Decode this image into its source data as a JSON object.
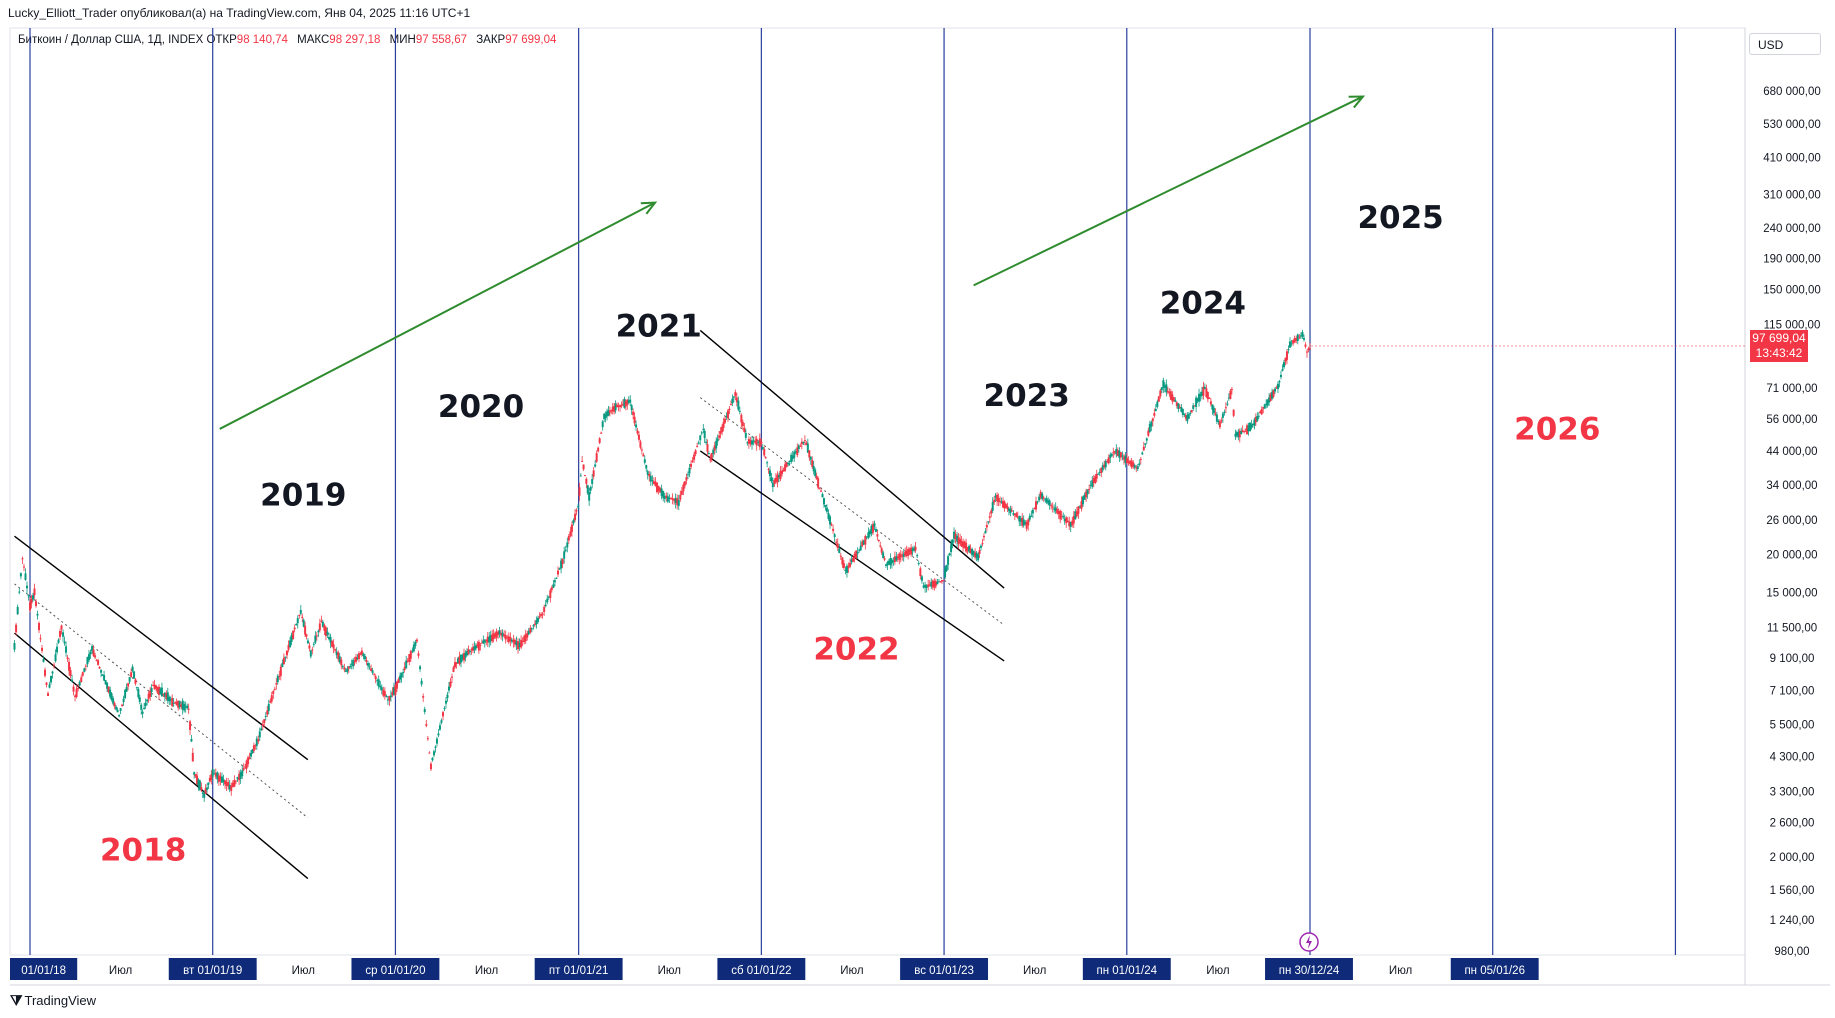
{
  "header": {
    "text": "Lucky_Elliott_Trader опубликовал(а) на TradingView.com, Янв 04, 2025 11:16 UTC+1"
  },
  "legend": {
    "symbol": "Биткоин / Доллар США, 1Д, INDEX",
    "open_label": "ОТКР",
    "open": "98 140,74",
    "high_label": "МАКС",
    "high": "98 297,18",
    "low_label": "МИН",
    "low": "97 558,67",
    "close_label": "ЗАКР",
    "close": "97 699,04"
  },
  "currency": "USD",
  "last_price": {
    "value": "97 699,04",
    "countdown": "13:43:42"
  },
  "footer": {
    "brand": "TradingView",
    "logo_icon": "tradingview-logo-icon"
  },
  "colors": {
    "up": "#089981",
    "down": "#f23645",
    "year_line": "#2a3f9d",
    "arrow": "#2e8b2e",
    "bear_year": "#f23645",
    "bull_year": "#131722"
  },
  "chart_data": {
    "type": "line",
    "title": "",
    "y_scale": "log",
    "ylim": [
      950,
      900000
    ],
    "y_ticks": [
      980,
      1240,
      1560,
      2000,
      2600,
      3300,
      4300,
      5500,
      7100,
      9100,
      11500,
      15000,
      20000,
      26000,
      34000,
      44000,
      56000,
      71000,
      115000,
      150000,
      190000,
      240000,
      310000,
      410000,
      530000,
      680000
    ],
    "y_tick_labels": [
      "980,00",
      "1 240,00",
      "1 560,00",
      "2 000,00",
      "2 600,00",
      "3 300,00",
      "4 300,00",
      "5 500,00",
      "7 100,00",
      "9 100,00",
      "11 500,00",
      "15 000,00",
      "20 000,00",
      "26 000,00",
      "34 000,00",
      "44 000,00",
      "56 000,00",
      "71 000,00",
      "115 000,00",
      "150 000,00",
      "190 000,00",
      "240 000,00",
      "310 000,00",
      "410 000,00",
      "530 000,00",
      "680 000,00"
    ],
    "xlim": [
      "2017-12-01",
      "2026-12-01"
    ],
    "x_ticks": [
      {
        "date": "2018-01-01",
        "label": "01/01/18",
        "boxed": true
      },
      {
        "date": "2018-07-01",
        "label": "Июл",
        "boxed": false
      },
      {
        "date": "2019-01-01",
        "label": "вт 01/01/19",
        "boxed": true
      },
      {
        "date": "2019-07-01",
        "label": "Июл",
        "boxed": false
      },
      {
        "date": "2020-01-01",
        "label": "ср 01/01/20",
        "boxed": true
      },
      {
        "date": "2020-07-01",
        "label": "Июл",
        "boxed": false
      },
      {
        "date": "2021-01-01",
        "label": "пт 01/01/21",
        "boxed": true
      },
      {
        "date": "2021-07-01",
        "label": "Июл",
        "boxed": false
      },
      {
        "date": "2022-01-01",
        "label": "сб 01/01/22",
        "boxed": true
      },
      {
        "date": "2022-07-01",
        "label": "Июл",
        "boxed": false
      },
      {
        "date": "2023-01-01",
        "label": "вс 01/01/23",
        "boxed": true
      },
      {
        "date": "2023-07-01",
        "label": "Июл",
        "boxed": false
      },
      {
        "date": "2024-01-01",
        "label": "пн 01/01/24",
        "boxed": true
      },
      {
        "date": "2024-07-01",
        "label": "Июл",
        "boxed": false
      },
      {
        "date": "2024-12-30",
        "label": "пн 30/12/24",
        "boxed": true
      },
      {
        "date": "2025-07-01",
        "label": "Июл",
        "boxed": false
      },
      {
        "date": "2026-01-05",
        "label": "пн 05/01/26",
        "boxed": true
      }
    ],
    "year_lines": [
      "2018-01-01",
      "2019-01-01",
      "2020-01-01",
      "2021-01-01",
      "2022-01-01",
      "2023-01-01",
      "2024-01-01",
      "2025-01-01",
      "2026-01-01",
      "2027-01-01"
    ],
    "series": [
      {
        "points": [
          [
            "2017-12-01",
            10000
          ],
          [
            "2017-12-17",
            19500
          ],
          [
            "2018-01-01",
            13500
          ],
          [
            "2018-01-10",
            15000
          ],
          [
            "2018-02-06",
            6900
          ],
          [
            "2018-03-05",
            11500
          ],
          [
            "2018-04-01",
            6800
          ],
          [
            "2018-05-05",
            9800
          ],
          [
            "2018-06-28",
            5900
          ],
          [
            "2018-07-25",
            8400
          ],
          [
            "2018-08-14",
            6000
          ],
          [
            "2018-09-04",
            7400
          ],
          [
            "2018-10-15",
            6500
          ],
          [
            "2018-11-14",
            6200
          ],
          [
            "2018-11-25",
            3800
          ],
          [
            "2018-12-15",
            3200
          ],
          [
            "2019-01-01",
            3800
          ],
          [
            "2019-02-07",
            3400
          ],
          [
            "2019-03-01",
            3800
          ],
          [
            "2019-04-02",
            4900
          ],
          [
            "2019-05-14",
            8000
          ],
          [
            "2019-06-26",
            13000
          ],
          [
            "2019-07-16",
            9400
          ],
          [
            "2019-08-06",
            12000
          ],
          [
            "2019-09-24",
            8200
          ],
          [
            "2019-10-26",
            9500
          ],
          [
            "2019-12-17",
            6600
          ],
          [
            "2020-01-01",
            7200
          ],
          [
            "2020-02-13",
            10400
          ],
          [
            "2020-03-12",
            4000
          ],
          [
            "2020-04-29",
            8700
          ],
          [
            "2020-06-01",
            9700
          ],
          [
            "2020-07-27",
            11000
          ],
          [
            "2020-09-05",
            10000
          ],
          [
            "2020-10-21",
            12800
          ],
          [
            "2020-11-30",
            19000
          ],
          [
            "2020-12-31",
            29000
          ],
          [
            "2021-01-08",
            41000
          ],
          [
            "2021-01-22",
            31000
          ],
          [
            "2021-02-21",
            57000
          ],
          [
            "2021-03-13",
            61000
          ],
          [
            "2021-04-14",
            64000
          ],
          [
            "2021-05-19",
            37000
          ],
          [
            "2021-06-22",
            31000
          ],
          [
            "2021-07-20",
            29800
          ],
          [
            "2021-09-07",
            52000
          ],
          [
            "2021-09-21",
            41000
          ],
          [
            "2021-11-10",
            68000
          ],
          [
            "2021-12-04",
            47000
          ],
          [
            "2022-01-01",
            47000
          ],
          [
            "2022-01-24",
            34000
          ],
          [
            "2022-03-29",
            48000
          ],
          [
            "2022-05-12",
            28000
          ],
          [
            "2022-06-18",
            17600
          ],
          [
            "2022-08-15",
            25000
          ],
          [
            "2022-09-07",
            18500
          ],
          [
            "2022-11-05",
            21000
          ],
          [
            "2022-11-21",
            15600
          ],
          [
            "2022-12-31",
            16500
          ],
          [
            "2023-01-21",
            23000
          ],
          [
            "2023-03-10",
            19600
          ],
          [
            "2023-04-14",
            31000
          ],
          [
            "2023-06-15",
            25000
          ],
          [
            "2023-07-13",
            31500
          ],
          [
            "2023-09-11",
            25000
          ],
          [
            "2023-10-24",
            34500
          ],
          [
            "2023-12-08",
            44000
          ],
          [
            "2024-01-23",
            38500
          ],
          [
            "2024-03-14",
            73000
          ],
          [
            "2024-05-01",
            56500
          ],
          [
            "2024-06-05",
            71000
          ],
          [
            "2024-07-05",
            53500
          ],
          [
            "2024-07-29",
            70000
          ],
          [
            "2024-08-05",
            49500
          ],
          [
            "2024-09-06",
            53000
          ],
          [
            "2024-10-29",
            72000
          ],
          [
            "2024-11-22",
            99000
          ],
          [
            "2024-12-17",
            107000
          ],
          [
            "2024-12-26",
            94000
          ],
          [
            "2025-01-04",
            97699
          ]
        ]
      }
    ],
    "year_labels": [
      {
        "text": "2018",
        "bear": true
      },
      {
        "text": "2019",
        "bear": false
      },
      {
        "text": "2020",
        "bear": false
      },
      {
        "text": "2021",
        "bear": false
      },
      {
        "text": "2022",
        "bear": true
      },
      {
        "text": "2023",
        "bear": false
      },
      {
        "text": "2024",
        "bear": false
      },
      {
        "text": "2025",
        "bear": false
      },
      {
        "text": "2026",
        "bear": true
      }
    ]
  }
}
